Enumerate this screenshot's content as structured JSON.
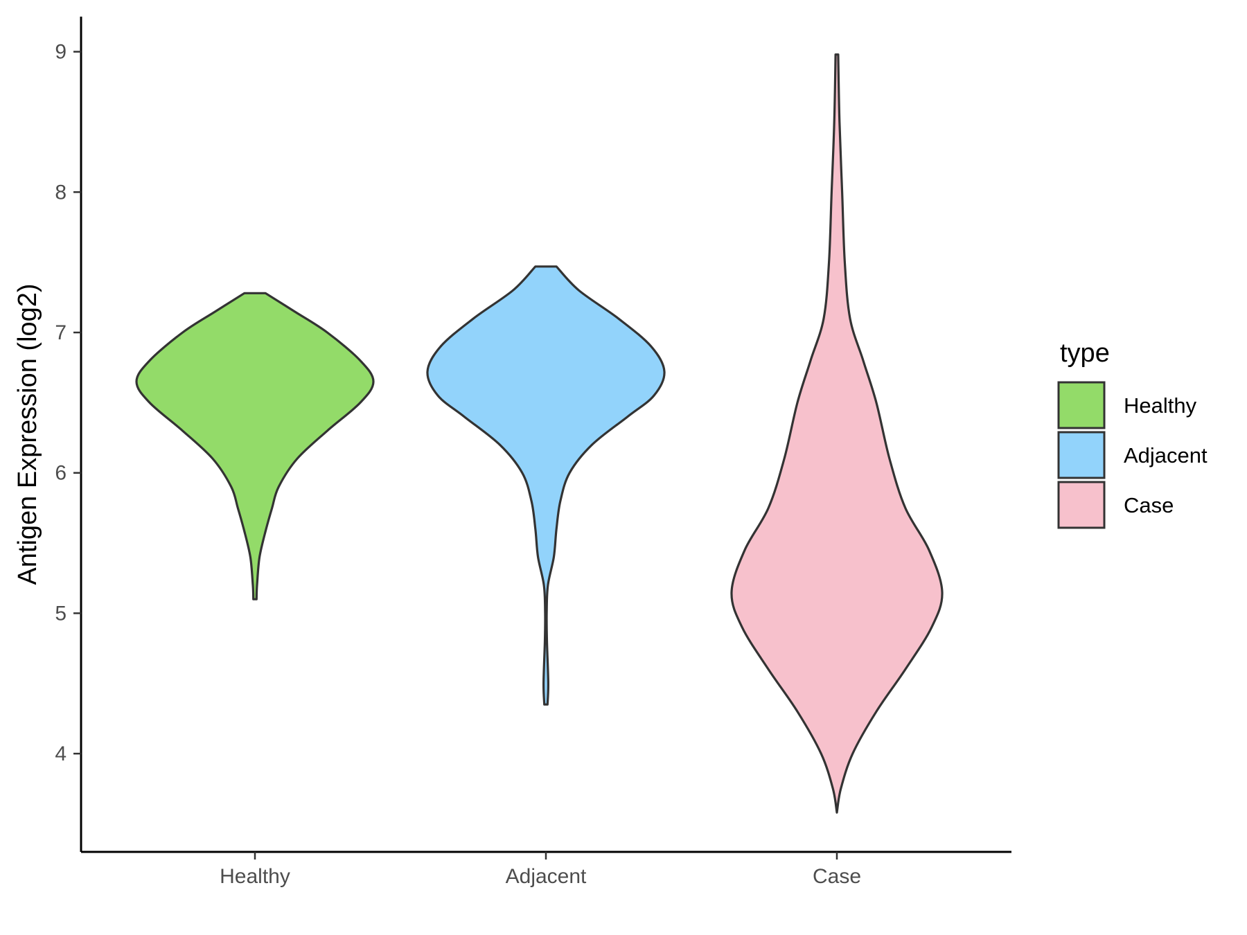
{
  "chart_data": {
    "type": "violin",
    "ylabel": "Antigen Expression (log2)",
    "xlabel": "",
    "categories": [
      "Healthy",
      "Adjacent",
      "Case"
    ],
    "yticks": [
      4,
      5,
      6,
      7,
      8,
      9
    ],
    "ylim": [
      3.3,
      9.25
    ],
    "grid": false,
    "legend": {
      "title": "type",
      "position": "right",
      "entries": [
        "Healthy",
        "Adjacent",
        "Case"
      ]
    },
    "series": [
      {
        "name": "Healthy",
        "color": "#93DB69",
        "min": 5.1,
        "max": 7.28,
        "density_profile": [
          [
            5.1,
            0.012
          ],
          [
            5.2,
            0.016
          ],
          [
            5.4,
            0.035
          ],
          [
            5.6,
            0.085
          ],
          [
            5.75,
            0.13
          ],
          [
            5.9,
            0.18
          ],
          [
            6.1,
            0.32
          ],
          [
            6.3,
            0.55
          ],
          [
            6.5,
            0.8
          ],
          [
            6.65,
            0.9
          ],
          [
            6.8,
            0.8
          ],
          [
            7.0,
            0.55
          ],
          [
            7.15,
            0.3
          ],
          [
            7.28,
            0.08
          ]
        ]
      },
      {
        "name": "Adjacent",
        "color": "#92D3FB",
        "min": 4.35,
        "max": 7.47,
        "density_profile": [
          [
            4.35,
            0.012
          ],
          [
            4.5,
            0.018
          ],
          [
            4.8,
            0.008
          ],
          [
            5.0,
            0.006
          ],
          [
            5.2,
            0.015
          ],
          [
            5.4,
            0.06
          ],
          [
            5.6,
            0.08
          ],
          [
            5.8,
            0.11
          ],
          [
            6.0,
            0.18
          ],
          [
            6.2,
            0.35
          ],
          [
            6.4,
            0.62
          ],
          [
            6.55,
            0.82
          ],
          [
            6.72,
            0.9
          ],
          [
            6.9,
            0.8
          ],
          [
            7.1,
            0.55
          ],
          [
            7.3,
            0.25
          ],
          [
            7.47,
            0.08
          ]
        ]
      },
      {
        "name": "Case",
        "color": "#F7C1CC",
        "min": 3.58,
        "max": 8.98,
        "density_profile": [
          [
            3.58,
            0.0
          ],
          [
            3.75,
            0.03
          ],
          [
            4.0,
            0.12
          ],
          [
            4.3,
            0.3
          ],
          [
            4.6,
            0.52
          ],
          [
            4.9,
            0.72
          ],
          [
            5.15,
            0.8
          ],
          [
            5.45,
            0.7
          ],
          [
            5.75,
            0.52
          ],
          [
            6.1,
            0.4
          ],
          [
            6.5,
            0.3
          ],
          [
            6.8,
            0.2
          ],
          [
            7.1,
            0.1
          ],
          [
            7.5,
            0.06
          ],
          [
            8.0,
            0.04
          ],
          [
            8.5,
            0.02
          ],
          [
            8.98,
            0.01
          ]
        ]
      }
    ]
  }
}
